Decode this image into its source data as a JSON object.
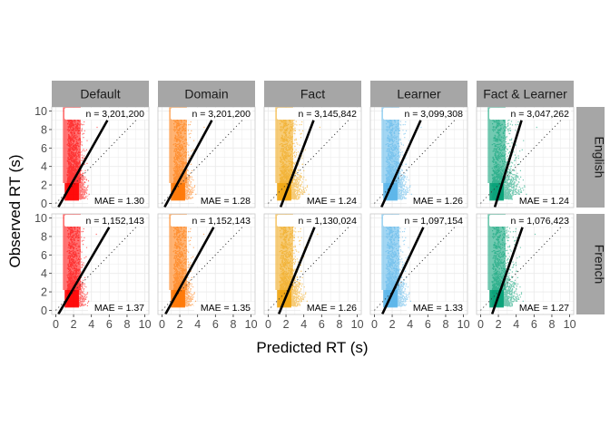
{
  "chart_data": {
    "type": "scatter",
    "xlabel": "Predicted RT (s)",
    "ylabel": "Observed RT (s)",
    "xlim": [
      0,
      10
    ],
    "ylim": [
      0,
      10
    ],
    "x_ticks": [
      "0",
      "2",
      "4",
      "6",
      "8",
      "10"
    ],
    "y_ticks": [
      "0",
      "2",
      "4",
      "6",
      "8",
      "10"
    ],
    "grid": true,
    "reference_line": "y = x (dotted)",
    "columns": [
      "Default",
      "Domain",
      "Fact",
      "Learner",
      "Fact & Learner"
    ],
    "rows": [
      "English",
      "French"
    ],
    "colors": {
      "Default": "#ff0000",
      "Domain": "#ff7400",
      "Fact": "#f0a30a",
      "Learner": "#56b4e9",
      "Fact & Learner": "#009e73"
    },
    "panels": [
      {
        "row": "English",
        "column": "Default",
        "n_label": "n = 3,201,200",
        "mae_label": "MAE = 1.30",
        "fit_line": [
          [
            0.3,
            -0.4
          ],
          [
            5.8,
            9.0
          ]
        ]
      },
      {
        "row": "English",
        "column": "Domain",
        "n_label": "n = 3,201,200",
        "mae_label": "MAE = 1.28",
        "fit_line": [
          [
            0.3,
            -0.4
          ],
          [
            5.6,
            9.0
          ]
        ]
      },
      {
        "row": "English",
        "column": "Fact",
        "n_label": "n = 3,145,842",
        "mae_label": "MAE = 1.24",
        "fit_line": [
          [
            1.4,
            -0.4
          ],
          [
            5.1,
            9.0
          ]
        ]
      },
      {
        "row": "English",
        "column": "Learner",
        "n_label": "n = 3,099,308",
        "mae_label": "MAE = 1.26",
        "fit_line": [
          [
            0.8,
            -0.4
          ],
          [
            5.2,
            9.0
          ]
        ]
      },
      {
        "row": "English",
        "column": "Fact & Learner",
        "n_label": "n = 3,047,262",
        "mae_label": "MAE = 1.24",
        "fit_line": [
          [
            1.6,
            -0.4
          ],
          [
            4.6,
            9.0
          ]
        ]
      },
      {
        "row": "French",
        "column": "Default",
        "n_label": "n = 1,152,143",
        "mae_label": "MAE = 1.37",
        "fit_line": [
          [
            0.3,
            -0.4
          ],
          [
            6.0,
            9.0
          ]
        ]
      },
      {
        "row": "French",
        "column": "Domain",
        "n_label": "n = 1,152,143",
        "mae_label": "MAE = 1.35",
        "fit_line": [
          [
            0.4,
            -0.4
          ],
          [
            5.8,
            9.0
          ]
        ]
      },
      {
        "row": "French",
        "column": "Fact",
        "n_label": "n = 1,130,024",
        "mae_label": "MAE = 1.26",
        "fit_line": [
          [
            1.2,
            -0.4
          ],
          [
            5.2,
            9.0
          ]
        ]
      },
      {
        "row": "French",
        "column": "Learner",
        "n_label": "n = 1,097,154",
        "mae_label": "MAE = 1.33",
        "fit_line": [
          [
            0.9,
            -0.4
          ],
          [
            5.5,
            9.0
          ]
        ]
      },
      {
        "row": "French",
        "column": "Fact & Learner",
        "n_label": "n = 1,076,423",
        "mae_label": "MAE = 1.27",
        "fit_line": [
          [
            1.3,
            -0.4
          ],
          [
            4.7,
            9.0
          ]
        ]
      }
    ]
  }
}
